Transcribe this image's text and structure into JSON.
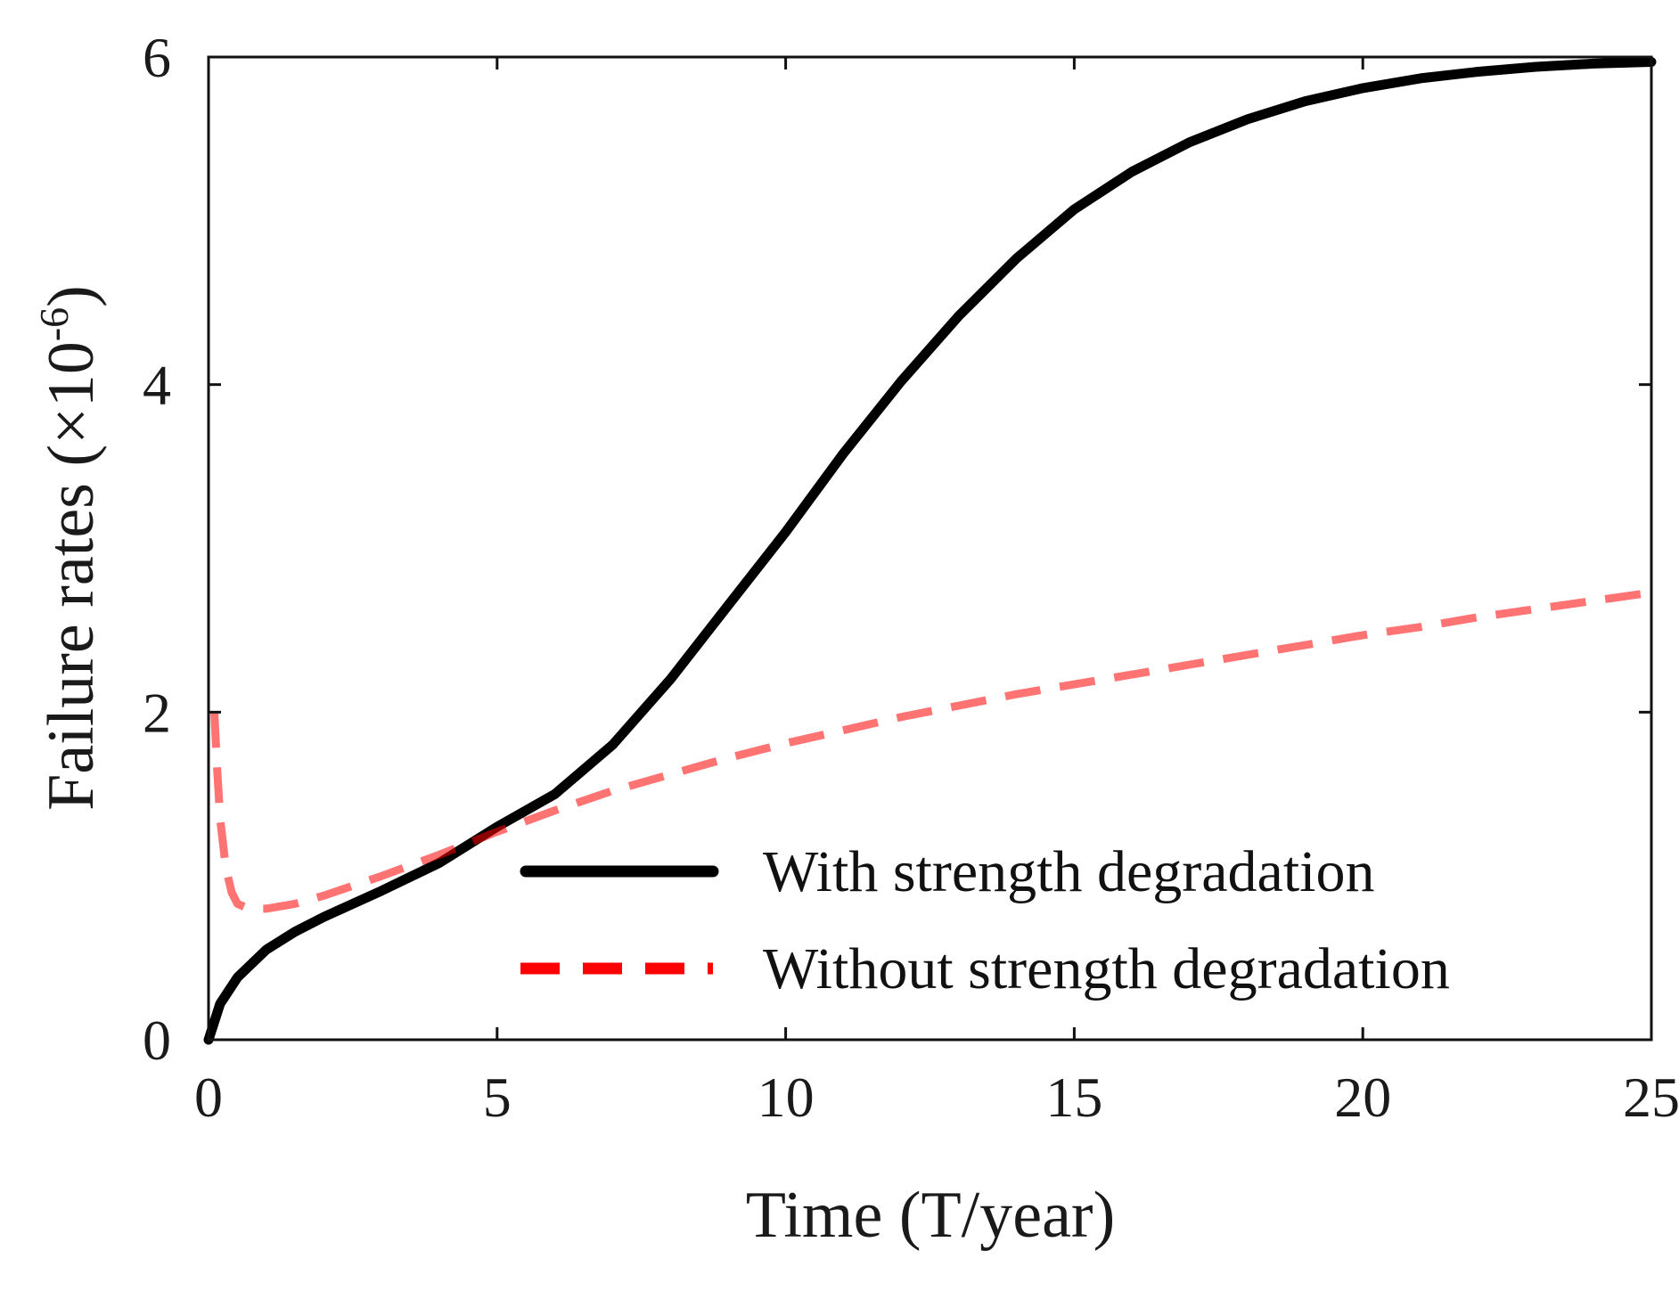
{
  "chart_data": {
    "type": "line",
    "xlabel": "Time (T/year)",
    "ylabel": {
      "main": "Failure rates (×10",
      "exponent": "-6",
      "close": ")"
    },
    "xlim": [
      0,
      25
    ],
    "ylim": [
      0,
      6
    ],
    "x_ticks": [
      0,
      5,
      10,
      15,
      20,
      25
    ],
    "y_ticks": [
      0,
      2,
      4,
      6
    ],
    "x_tick_labels": [
      "0",
      "5",
      "10",
      "15",
      "20",
      "25"
    ],
    "y_tick_labels": [
      "0",
      "2",
      "4",
      "6"
    ],
    "grid": false,
    "legend_position": "bottom-right",
    "series": [
      {
        "name": "With strength degradation",
        "color": "#000000",
        "style": "solid",
        "x": [
          0,
          0.2,
          0.5,
          1,
          1.5,
          2,
          3,
          4,
          5,
          6,
          7,
          8,
          9,
          10,
          11,
          12,
          13,
          14,
          15,
          16,
          17,
          18,
          19,
          20,
          21,
          22,
          23,
          24,
          25
        ],
        "y": [
          0,
          0.22,
          0.38,
          0.55,
          0.66,
          0.75,
          0.91,
          1.08,
          1.3,
          1.5,
          1.8,
          2.2,
          2.65,
          3.1,
          3.58,
          4.02,
          4.42,
          4.77,
          5.07,
          5.3,
          5.48,
          5.62,
          5.73,
          5.81,
          5.87,
          5.91,
          5.94,
          5.96,
          5.97
        ]
      },
      {
        "name": "Without strength degradation",
        "color": "#ff0000",
        "style": "dashed",
        "x": [
          0.1,
          0.15,
          0.2,
          0.3,
          0.4,
          0.5,
          0.7,
          1,
          1.5,
          2,
          3,
          4,
          5,
          6,
          7,
          8,
          9,
          10,
          11,
          12,
          13,
          14,
          15,
          16,
          17,
          18,
          19,
          20,
          21,
          22,
          23,
          24,
          25
        ],
        "y": [
          2.0,
          1.65,
          1.35,
          1.05,
          0.9,
          0.83,
          0.8,
          0.8,
          0.83,
          0.88,
          1.0,
          1.13,
          1.27,
          1.4,
          1.52,
          1.62,
          1.72,
          1.81,
          1.89,
          1.97,
          2.04,
          2.11,
          2.17,
          2.23,
          2.29,
          2.35,
          2.41,
          2.47,
          2.52,
          2.58,
          2.63,
          2.68,
          2.73
        ]
      }
    ]
  }
}
